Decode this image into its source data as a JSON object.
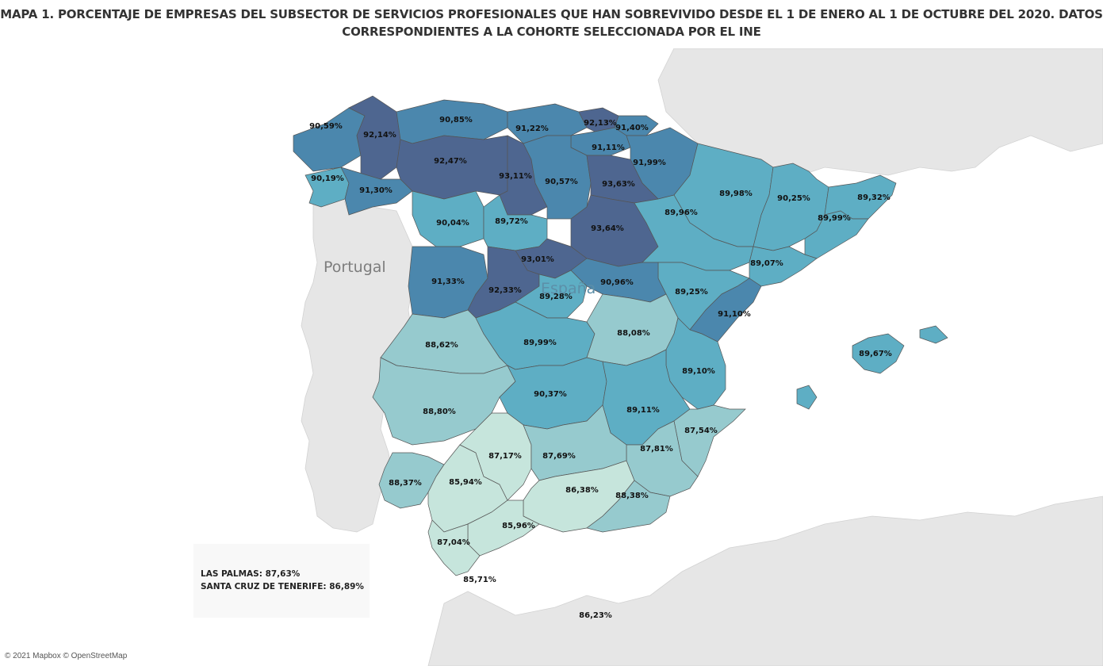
{
  "title": {
    "line1": "MAPA 1. PORCENTAJE DE EMPRESAS DEL SUBSECTOR DE SERVICIOS PROFESIONALES QUE HAN SOBREVIVIDO DESDE EL 1 DE ENERO AL 1 DE OCTUBRE DEL 2020. DATOS",
    "line2": "CORRESPONDIENTES A LA COHORTE SELECCIONADA POR EL INE"
  },
  "map": {
    "country_labels": {
      "portugal": "Portugal",
      "espana": "España"
    },
    "colors": {
      "background": "#ffffff",
      "land_other": "#e6e6e6",
      "scale_lowest": "#c6e5dc",
      "scale_low": "#96cace",
      "scale_mid": "#5eaec4",
      "scale_high": "#4b87ad",
      "scale_highest": "#4e6690"
    },
    "provinces": [
      {
        "name": "A Coruña",
        "value": "90,59%"
      },
      {
        "name": "Lugo",
        "value": "92,14%"
      },
      {
        "name": "Asturias",
        "value": "90,85%"
      },
      {
        "name": "Cantabria",
        "value": "91,22%"
      },
      {
        "name": "Bizkaia",
        "value": "92,13%"
      },
      {
        "name": "Gipuzkoa",
        "value": "91,40%"
      },
      {
        "name": "Álava",
        "value": "91,11%"
      },
      {
        "name": "Navarra",
        "value": "91,99%"
      },
      {
        "name": "León",
        "value": "92,47%"
      },
      {
        "name": "Palencia",
        "value": "93,11%"
      },
      {
        "name": "Burgos",
        "value": "90,57%"
      },
      {
        "name": "La Rioja",
        "value": "93,63%"
      },
      {
        "name": "Pontevedra",
        "value": "90,19%"
      },
      {
        "name": "Ourense",
        "value": "91,30%"
      },
      {
        "name": "Huesca",
        "value": "89,98%"
      },
      {
        "name": "Lleida",
        "value": "90,25%"
      },
      {
        "name": "Girona",
        "value": "89,32%"
      },
      {
        "name": "Barcelona",
        "value": "89,99%"
      },
      {
        "name": "Zamora",
        "value": "90,04%"
      },
      {
        "name": "Valladolid",
        "value": "89,72%"
      },
      {
        "name": "Soria",
        "value": "93,64%"
      },
      {
        "name": "Zaragoza",
        "value": "89,96%"
      },
      {
        "name": "Tarragona",
        "value": "89,07%"
      },
      {
        "name": "Salamanca",
        "value": "91,33%"
      },
      {
        "name": "Segovia",
        "value": "93,01%"
      },
      {
        "name": "Ávila",
        "value": "92,33%"
      },
      {
        "name": "Madrid",
        "value": "89,28%"
      },
      {
        "name": "Guadalajara",
        "value": "90,96%"
      },
      {
        "name": "Teruel",
        "value": "89,25%"
      },
      {
        "name": "Castellón",
        "value": "91,10%"
      },
      {
        "name": "Illes Balears",
        "value": "89,67%"
      },
      {
        "name": "Cáceres",
        "value": "88,62%"
      },
      {
        "name": "Toledo",
        "value": "89,99%"
      },
      {
        "name": "Cuenca",
        "value": "88,08%"
      },
      {
        "name": "Valencia",
        "value": "89,10%"
      },
      {
        "name": "Badajoz",
        "value": "88,80%"
      },
      {
        "name": "Ciudad Real",
        "value": "90,37%"
      },
      {
        "name": "Albacete",
        "value": "89,11%"
      },
      {
        "name": "Alicante",
        "value": "87,54%"
      },
      {
        "name": "Córdoba",
        "value": "87,17%"
      },
      {
        "name": "Jaén",
        "value": "87,69%"
      },
      {
        "name": "Murcia",
        "value": "87,81%"
      },
      {
        "name": "Huelva",
        "value": "88,37%"
      },
      {
        "name": "Sevilla",
        "value": "85,94%"
      },
      {
        "name": "Granada",
        "value": "86,38%"
      },
      {
        "name": "Almería",
        "value": "88,38%"
      },
      {
        "name": "Málaga",
        "value": "85,96%"
      },
      {
        "name": "Cádiz",
        "value": "87,04%"
      },
      {
        "name": "Ceuta",
        "value": "85,71%"
      },
      {
        "name": "Melilla",
        "value": "86,23%"
      }
    ]
  },
  "canarias": {
    "line1": "LAS PALMAS: 87,63%",
    "line2": "SANTA CRUZ DE TENERIFE: 86,89%"
  },
  "attribution": "© 2021 Mapbox © OpenStreetMap"
}
